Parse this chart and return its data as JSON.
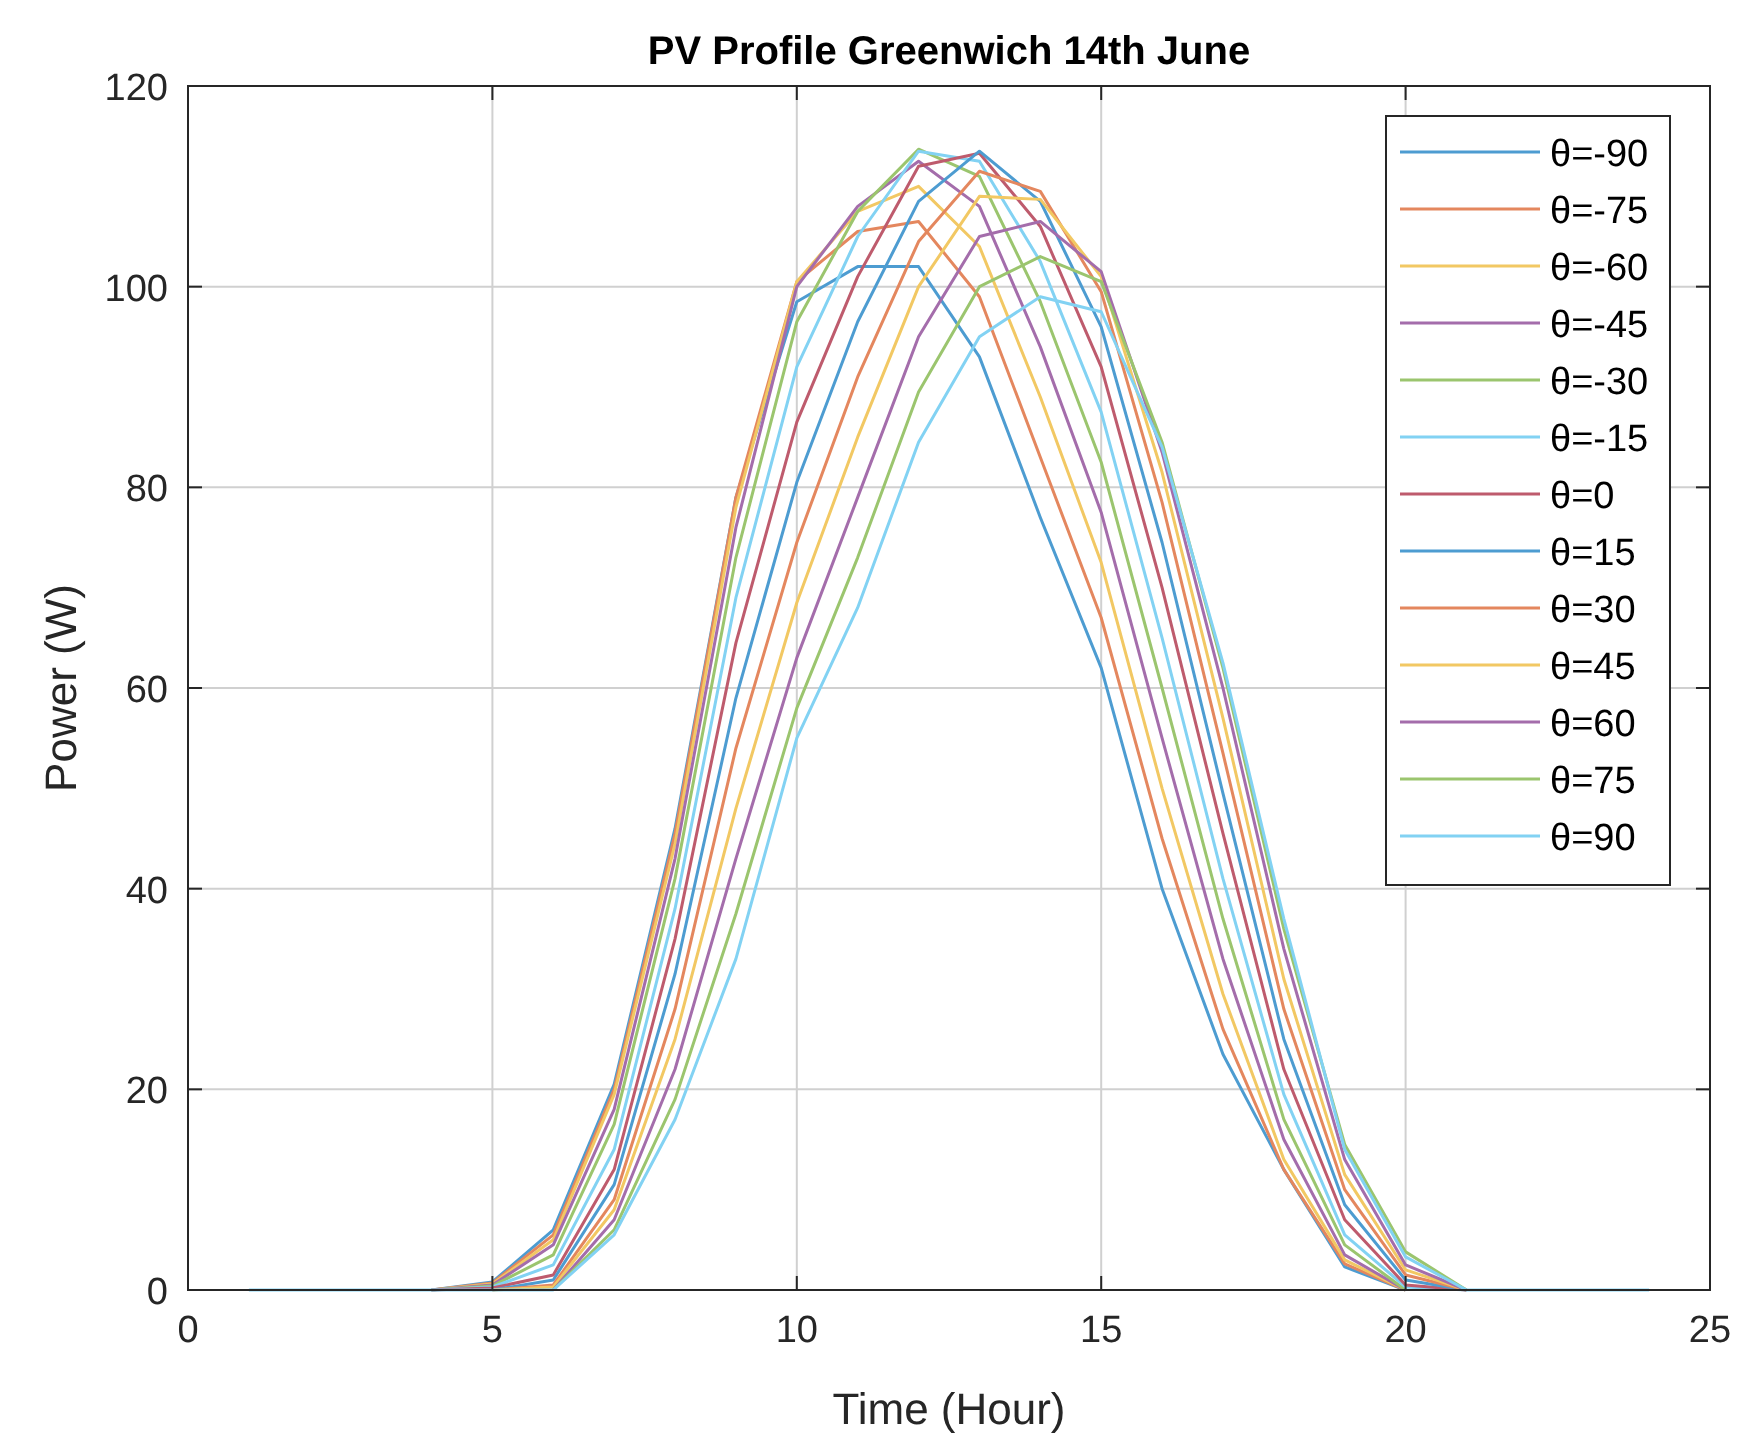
{
  "chart_data": {
    "type": "line",
    "title": "PV Profile Greenwich 14th June",
    "xlabel": "Time (Hour)",
    "ylabel": "Power (W)",
    "x": [
      1,
      2,
      3,
      4,
      5,
      6,
      7,
      8,
      9,
      10,
      11,
      12,
      13,
      14,
      15,
      16,
      17,
      18,
      19,
      20,
      21,
      22,
      23,
      24
    ],
    "xlim": [
      0,
      25
    ],
    "xticks": [
      0,
      5,
      10,
      15,
      20,
      25
    ],
    "ylim": [
      0,
      120
    ],
    "yticks": [
      0,
      20,
      40,
      60,
      80,
      100,
      120
    ],
    "grid": true,
    "legend": "top right",
    "marker": "none",
    "line_style": "solid",
    "series": [
      {
        "name": "θ=-90",
        "color": "#4d9cd1",
        "values": [
          null,
          null,
          null,
          0,
          0.8,
          6,
          20.5,
          46,
          79,
          98.5,
          102,
          102,
          93,
          77,
          62,
          40,
          23.5,
          12,
          2.3,
          0,
          null,
          null,
          null,
          null
        ]
      },
      {
        "name": "θ=-75",
        "color": "#e4875e",
        "values": [
          null,
          null,
          null,
          0,
          0.7,
          5.5,
          20,
          45.5,
          79,
          100.5,
          105.5,
          106.5,
          99,
          83,
          67,
          45,
          26,
          12,
          2.6,
          0,
          null,
          null,
          null,
          null
        ]
      },
      {
        "name": "θ=-60",
        "color": "#f2c863",
        "values": [
          null,
          null,
          null,
          0,
          0.6,
          5,
          19.5,
          44.5,
          78,
          100.5,
          107.5,
          110,
          104,
          89,
          72.5,
          50,
          29.5,
          13,
          3,
          0,
          null,
          null,
          null,
          null
        ]
      },
      {
        "name": "θ=-45",
        "color": "#a46dab",
        "values": [
          null,
          null,
          null,
          0,
          0.5,
          4.5,
          18,
          43,
          76,
          100,
          108,
          112.5,
          108,
          94,
          77.5,
          55,
          33,
          15,
          3.5,
          0,
          null,
          null,
          null,
          null
        ]
      },
      {
        "name": "θ=-30",
        "color": "#9bc56e",
        "values": [
          null,
          null,
          null,
          0,
          0.4,
          3.5,
          16.5,
          41,
          73,
          96.5,
          107.5,
          113.7,
          111,
          98.5,
          82.5,
          60,
          37,
          17,
          4.5,
          0,
          null,
          null,
          null,
          null
        ]
      },
      {
        "name": "θ=-15",
        "color": "#82d2f3",
        "values": [
          null,
          null,
          null,
          0,
          0.3,
          2.5,
          14,
          38,
          69,
          92,
          105,
          113.5,
          112.5,
          102.5,
          87.5,
          65,
          41,
          19.5,
          5.5,
          0.3,
          0,
          null,
          null,
          null
        ]
      },
      {
        "name": "θ=0",
        "color": "#be5b6d",
        "values": [
          null,
          null,
          null,
          0,
          0.2,
          1.5,
          12,
          35,
          64.5,
          86.5,
          101,
          112,
          113.3,
          106,
          92,
          70,
          45.5,
          22,
          7,
          0.5,
          0,
          null,
          null,
          null
        ]
      },
      {
        "name": "θ=15",
        "color": "#4d9cd1",
        "values": [
          null,
          null,
          null,
          null,
          0,
          1,
          10.5,
          31.5,
          59,
          80.5,
          96.5,
          108.5,
          113.5,
          108.5,
          96,
          74.5,
          49.5,
          25,
          8.5,
          1,
          0,
          null,
          null,
          null
        ]
      },
      {
        "name": "θ=30",
        "color": "#e4875e",
        "values": [
          null,
          null,
          null,
          null,
          0,
          0.5,
          9,
          28,
          54,
          74.5,
          91,
          104.5,
          111.5,
          109.5,
          99.5,
          78.5,
          53.5,
          28,
          10,
          1.5,
          0,
          null,
          null,
          null
        ]
      },
      {
        "name": "θ=45",
        "color": "#f2c863",
        "values": [
          null,
          null,
          null,
          null,
          0,
          0.3,
          8,
          25,
          48,
          68.5,
          85,
          100,
          109,
          108.7,
          101,
          81.5,
          57,
          31,
          11.5,
          2,
          0,
          null,
          null,
          null
        ]
      },
      {
        "name": "θ=60",
        "color": "#a46dab",
        "values": [
          null,
          null,
          null,
          null,
          null,
          0,
          7,
          22,
          43,
          63,
          79,
          95,
          105,
          106.5,
          101.5,
          83.5,
          60,
          34,
          13,
          2.5,
          0,
          null,
          null,
          null
        ]
      },
      {
        "name": "θ=75",
        "color": "#9bc56e",
        "values": [
          null,
          null,
          null,
          null,
          null,
          0,
          6,
          19,
          37.5,
          58,
          73,
          89.5,
          100,
          103,
          100.5,
          84.5,
          62,
          36,
          14.5,
          3.8,
          0,
          null,
          null,
          null
        ]
      },
      {
        "name": "θ=90",
        "color": "#82d2f3",
        "values": [
          0,
          0,
          0,
          0,
          0,
          0,
          5.5,
          17,
          33,
          55,
          68,
          84.5,
          95,
          99,
          97.5,
          84,
          62.5,
          37,
          14,
          3.3,
          0,
          0,
          0,
          0
        ]
      }
    ]
  }
}
